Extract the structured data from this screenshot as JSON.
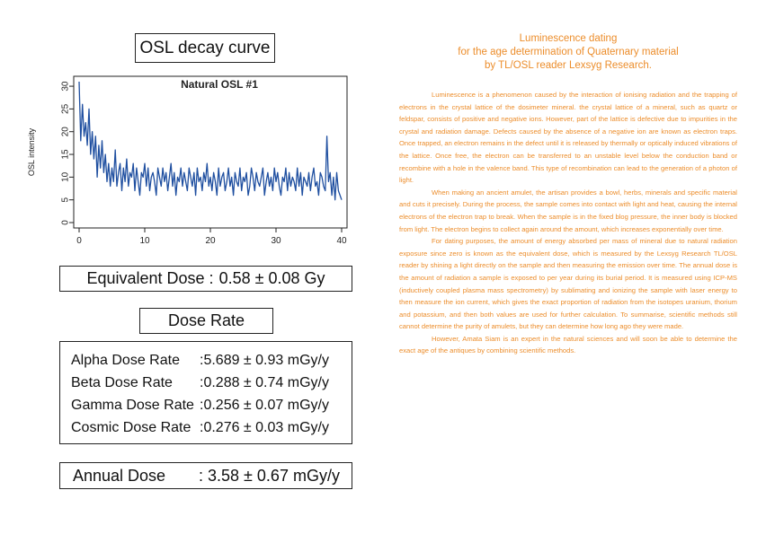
{
  "osl_box": {
    "title": "OSL decay curve"
  },
  "chart_data": {
    "type": "line",
    "title": "Natural OSL #1",
    "xlabel": "",
    "ylabel": "OSL intensity",
    "xlim": [
      0,
      40
    ],
    "ylim": [
      0,
      31
    ],
    "x_ticks": [
      0,
      10,
      20,
      30,
      40
    ],
    "y_ticks": [
      0,
      5,
      10,
      15,
      20,
      25,
      30
    ],
    "grid": false,
    "color": "#1f4fa0",
    "series": [
      {
        "x_start": 0,
        "x_step": 0.25,
        "values": [
          31,
          18,
          26,
          19,
          22,
          17,
          25,
          15,
          20,
          14,
          19,
          10,
          17,
          12,
          18,
          11,
          15,
          9,
          13,
          8,
          12,
          9,
          16,
          8,
          11,
          13,
          7,
          12,
          9,
          14,
          8,
          11,
          10,
          13,
          7,
          12,
          9,
          6,
          11,
          10,
          13,
          8,
          12,
          7,
          10,
          11,
          9,
          6,
          12,
          10,
          8,
          12,
          9,
          11,
          7,
          10,
          13,
          8,
          11,
          6,
          10,
          9,
          12,
          8,
          11,
          9,
          7,
          12,
          10,
          8,
          11,
          6,
          12,
          9,
          10,
          7,
          11,
          9,
          13,
          8,
          10,
          7,
          11,
          9,
          6,
          12,
          8,
          10,
          11,
          7,
          9,
          12,
          8,
          10,
          6,
          11,
          9,
          8,
          12,
          7,
          10,
          9,
          11,
          6,
          8,
          12,
          10,
          7,
          11,
          9,
          8,
          10,
          12,
          6,
          9,
          11,
          8,
          10,
          7,
          12,
          9,
          11,
          8,
          6,
          10,
          9,
          12,
          7,
          11,
          8,
          10,
          9,
          7,
          12,
          8,
          11,
          6,
          10,
          9,
          8,
          11,
          7,
          10,
          12,
          8,
          9,
          6,
          11,
          10,
          8,
          7,
          19,
          9,
          11,
          6,
          10,
          5,
          11,
          7,
          6,
          5
        ]
      }
    ]
  },
  "equivalent_dose": {
    "label": "Equivalent Dose :",
    "value": "0.58 ± 0.08 Gy"
  },
  "dose_rate": {
    "title": "Dose Rate",
    "rows": [
      {
        "name": "Alpha Dose Rate",
        "value": ":5.689 ± 0.93  mGy/y"
      },
      {
        "name": "Beta Dose Rate",
        "value": ":0.288 ± 0.74  mGy/y"
      },
      {
        "name": "Gamma Dose Rate",
        "value": ":0.256 ± 0.07  mGy/y"
      },
      {
        "name": "Cosmic Dose Rate",
        "value": ":0.276 ± 0.03  mGy/y"
      }
    ]
  },
  "annual_dose": {
    "name": "Annual Dose",
    "value": ": 3.58 ± 0.67 mGy/y"
  },
  "article": {
    "title_lines": [
      "Luminescence dating",
      "for the age determination of Quaternary material",
      "by TL/OSL reader Lexsyg Research."
    ],
    "paragraphs": [
      "Luminescence is a phenomenon caused by the interaction of ionising radiation and the trapping of electrons in the crystal lattice of the dosimeter mineral. the crystal lattice of a mineral, such as quartz or feldspar, consists of positive and negative ions. However, part of the lattice is defective due to impurities in the crystal and radiation damage. Defects caused by the absence of a negative ion are known as electron traps. Once trapped, an electron remains in the defect until it is released by thermally or optically induced vibrations of the lattice. Once free, the electron can be transferred to an unstable level below the conduction band or recombine with a hole in the valence band. This type of recombination can lead to the generation of a photon of light.",
      "When making an ancient amulet, the artisan provides a bowl, herbs, minerals and specific material and cuts it precisely. During the process, the sample comes into contact with light and heat, causing the internal electrons of the electron trap to break. When the sample is in the fixed blog pressure, the inner body is blocked from light. The electron begins to collect again around the amount, which increases exponentially over time.",
      "For dating purposes, the amount of energy absorbed per mass of mineral due to natural radiation exposure since zero is known as the equivalent dose, which is measured by the Lexsyg Research TL/OSL reader by shining a light directly on the sample and then measuring the emission over time. The annual dose is the amount of radiation a sample is exposed to per year during its burial period. It is measured using ICP-MS (inductively coupled plasma mass spectrometry) by sublimating and ionizing the sample with laser energy to then measure the ion current, which gives the exact proportion of radiation from the isotopes uranium, thorium and potassium, and then both values are used for further calculation. To summarise, scientific methods still cannot determine the purity of amulets, but they can determine how long ago they were made.",
      "However, Amata Siam is an expert in the natural sciences and will soon be able to determine the exact age of the antiques by combining scientific methods."
    ]
  }
}
